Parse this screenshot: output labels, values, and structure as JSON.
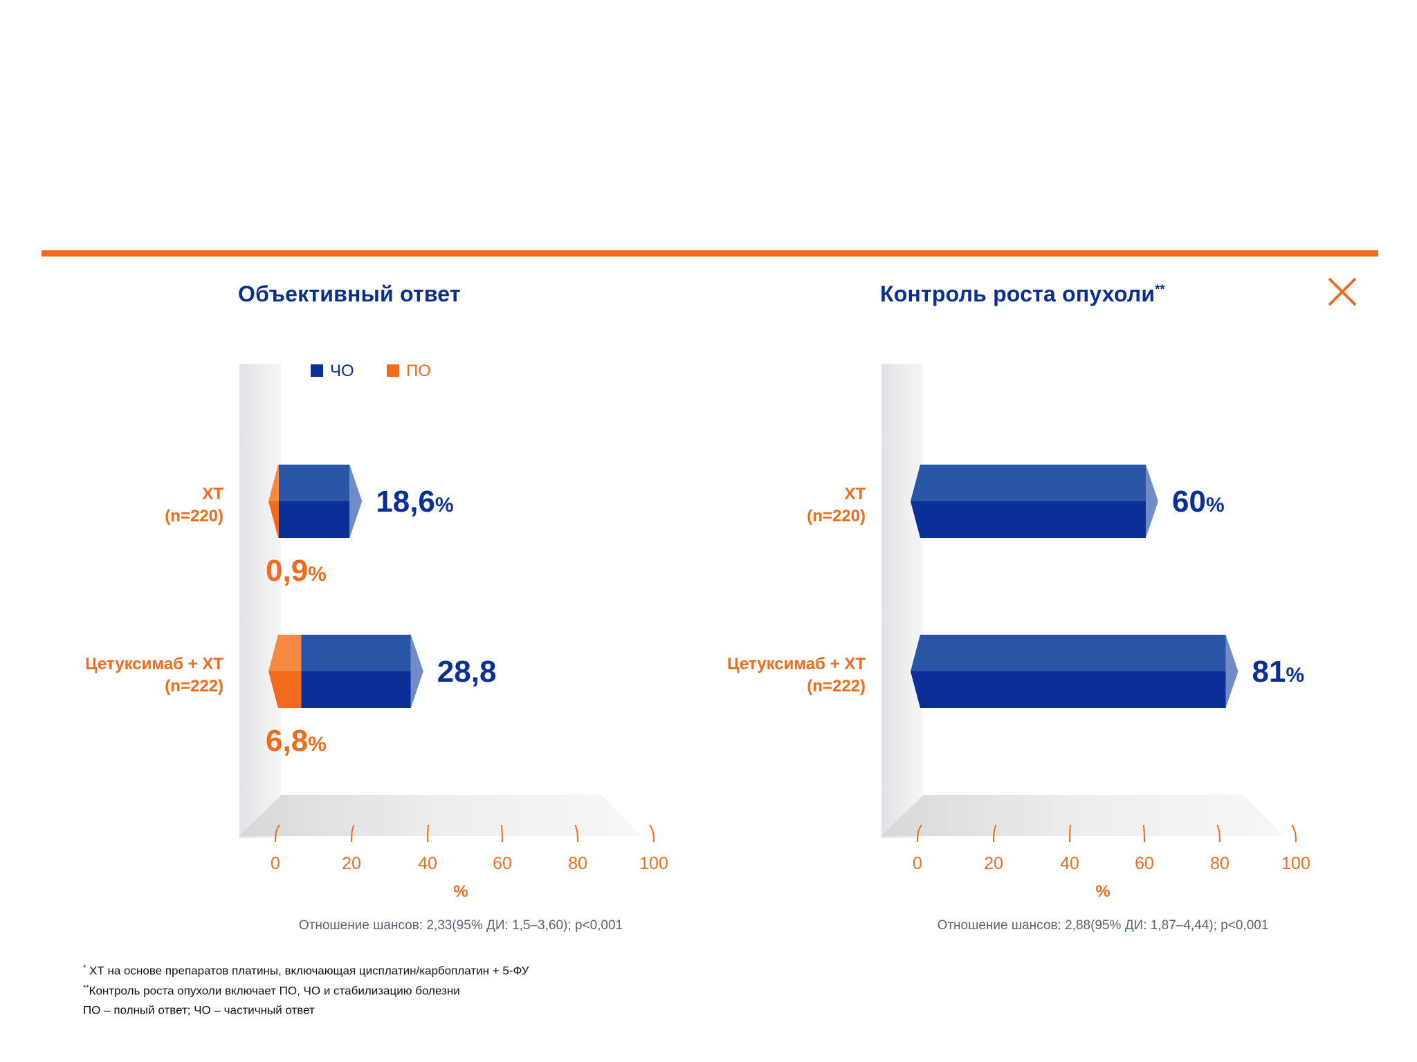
{
  "colors": {
    "accent_orange": "#f26a1b",
    "partial_response_blue": "#0a2f96",
    "title_blue": "#0a2f8f",
    "caption_gray": "#54657a"
  },
  "close_icon": "close-icon",
  "panels": [
    {
      "title": "Объективный ответ",
      "title_sup": "",
      "legend": [
        {
          "label": "ЧО",
          "color": "#0a2f96"
        },
        {
          "label": "ПО",
          "color": "#f26a1b"
        }
      ],
      "caption": "Отношение шансов: 2,33(95% ДИ: 1,5–3,60); p<0,001"
    },
    {
      "title": "Контроль роста опухоли",
      "title_sup": "**",
      "legend": [],
      "caption": "Отношение шансов: 2,88(95% ДИ: 1,87–4,44); p<0,001"
    }
  ],
  "chart_data": [
    {
      "type": "bar",
      "orientation": "horizontal",
      "stacked": true,
      "title": "Объективный ответ",
      "categories": [
        {
          "name": "ХТ",
          "n": "(n=220)"
        },
        {
          "name": "Цетуксимаб + ХТ",
          "n": "(n=222)"
        }
      ],
      "series": [
        {
          "name": "ПО",
          "color": "#f26a1b",
          "values": [
            0.9,
            6.8
          ],
          "labels": [
            "0,9",
            "6,8"
          ],
          "label_units": [
            "%",
            "%"
          ]
        },
        {
          "name": "ЧО",
          "color": "#0a2f96",
          "values": [
            18.6,
            28.8
          ],
          "labels": [
            "18,6",
            "28,8"
          ],
          "label_units": [
            "%",
            ""
          ]
        }
      ],
      "x_ticks": [
        "0",
        "20",
        "40",
        "60",
        "80",
        "100"
      ],
      "xlim": [
        0,
        100
      ],
      "xlabel": "%",
      "legend_position": "top"
    },
    {
      "type": "bar",
      "orientation": "horizontal",
      "stacked": false,
      "title": "Контроль роста опухоли",
      "categories": [
        {
          "name": "ХТ",
          "n": "(n=220)"
        },
        {
          "name": "Цетуксимаб + ХТ",
          "n": "(n=222)"
        }
      ],
      "series": [
        {
          "name": "",
          "color": "#0a2f96",
          "values": [
            60,
            81
          ],
          "labels": [
            "60",
            "81"
          ],
          "label_units": [
            "%",
            "%"
          ]
        }
      ],
      "x_ticks": [
        "0",
        "20",
        "40",
        "60",
        "80",
        "100"
      ],
      "xlim": [
        0,
        100
      ],
      "xlabel": "%",
      "legend_position": "none"
    }
  ],
  "footnotes": [
    {
      "sup": "*",
      "text": " ХТ на основе препаратов платины, включающая цисплатин/карбоплатин + 5-ФУ"
    },
    {
      "sup": "**",
      "text": "Контроль роста опухоли включает ПО, ЧО и стабилизацию болезни"
    },
    {
      "sup": "",
      "text": "ПО – полный ответ; ЧО – частичный ответ"
    }
  ]
}
